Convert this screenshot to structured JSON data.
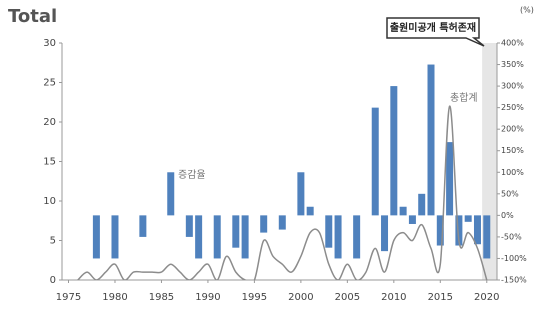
{
  "chart_data": {
    "type": "bar_line",
    "title": "Total",
    "y2_label": "(%)",
    "annotation": "출원미공개 특허존재",
    "shade_x": [
      2019.5,
      2021.1
    ],
    "x": [
      1975,
      1976,
      1977,
      1978,
      1979,
      1980,
      1981,
      1982,
      1983,
      1984,
      1985,
      1986,
      1987,
      1988,
      1989,
      1990,
      1991,
      1992,
      1993,
      1994,
      1995,
      1996,
      1997,
      1998,
      1999,
      2000,
      2001,
      2002,
      2003,
      2004,
      2005,
      2006,
      2007,
      2008,
      2009,
      2010,
      2011,
      2012,
      2013,
      2014,
      2015,
      2016,
      2017,
      2018,
      2019,
      2020
    ],
    "series": [
      {
        "name": "증감율",
        "type": "bar",
        "axis": "y2",
        "color": "#4f81bd",
        "values": [
          null,
          null,
          null,
          -100,
          null,
          -100,
          null,
          null,
          -50,
          null,
          null,
          100,
          null,
          -50,
          -100,
          null,
          -100,
          null,
          -75,
          -100,
          null,
          -40,
          null,
          -33,
          null,
          100,
          20,
          null,
          -75,
          -100,
          null,
          -100,
          null,
          250,
          -83,
          300,
          20,
          -20,
          50,
          350,
          -70,
          170,
          -70,
          -15,
          -67,
          -100
        ]
      },
      {
        "name": "총합계",
        "type": "line",
        "color": "#8c8c8c",
        "values": [
          null,
          0,
          1,
          0,
          1,
          2,
          0,
          1,
          1,
          1,
          1,
          2,
          1,
          0,
          1,
          2,
          0,
          3,
          1,
          0,
          0,
          5,
          3,
          2,
          1,
          3,
          6,
          6,
          2,
          0,
          2,
          0,
          1,
          4,
          1,
          5,
          6,
          5,
          7,
          4,
          2,
          22,
          5,
          6,
          4,
          0
        ]
      }
    ],
    "xlim": [
      1974.3,
      2021.1
    ],
    "xticks": [
      1975,
      1980,
      1985,
      1990,
      1995,
      2000,
      2005,
      2010,
      2015,
      2020
    ],
    "ylim": [
      0,
      30
    ],
    "yticks": [
      0,
      5,
      10,
      15,
      20,
      25,
      30
    ],
    "y2lim": [
      -150,
      400
    ],
    "y2ticks": [
      {
        "value": -150,
        "label": "-150%"
      },
      {
        "value": -100,
        "label": "-100%"
      },
      {
        "value": -50,
        "label": "-50%"
      },
      {
        "value": 0,
        "label": "0%"
      },
      {
        "value": 50,
        "label": "50%"
      },
      {
        "value": 100,
        "label": "100%"
      },
      {
        "value": 150,
        "label": "150%"
      },
      {
        "value": 200,
        "label": "200%"
      },
      {
        "value": 250,
        "label": "250%"
      },
      {
        "value": 300,
        "label": "300%"
      },
      {
        "value": 350,
        "label": "350%"
      },
      {
        "value": 400,
        "label": "400%"
      }
    ],
    "grid": false
  }
}
